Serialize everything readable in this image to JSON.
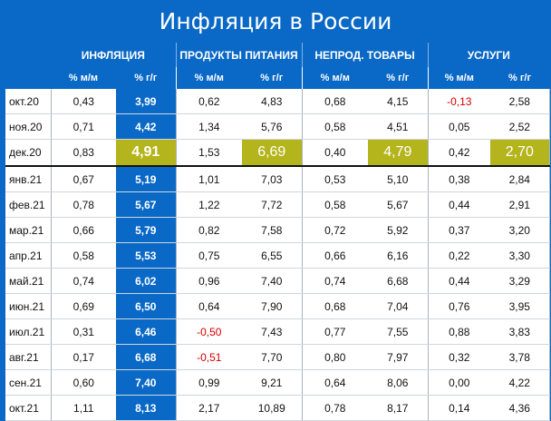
{
  "title": "Инфляция в России",
  "groups": [
    {
      "label": "ИНФЛЯЦИЯ"
    },
    {
      "label": "ПРОДУКТЫ ПИТАНИЯ"
    },
    {
      "label": "НЕПРОД. ТОВАРЫ"
    },
    {
      "label": "УСЛУГИ"
    }
  ],
  "subheaders": {
    "mm": "% м/м",
    "yy": "% г/г"
  },
  "highlight_colors": {
    "blue": "#0a69c6",
    "gold": "#b4b41c",
    "negative": "#d40000"
  },
  "rows": [
    {
      "month": "окт.20",
      "v": [
        "0,43",
        "3,99",
        "0,62",
        "4,83",
        "0,68",
        "4,15",
        "-0,13",
        "2,58"
      ]
    },
    {
      "month": "ноя.20",
      "v": [
        "0,71",
        "4,42",
        "1,34",
        "5,76",
        "0,58",
        "4,51",
        "0,05",
        "2,52"
      ]
    },
    {
      "month": "дек.20",
      "v": [
        "0,83",
        "4,91",
        "1,53",
        "6,69",
        "0,40",
        "4,79",
        "0,42",
        "2,70"
      ]
    },
    {
      "month": "янв.21",
      "v": [
        "0,67",
        "5,19",
        "1,01",
        "7,03",
        "0,53",
        "5,10",
        "0,38",
        "2,84"
      ]
    },
    {
      "month": "фев.21",
      "v": [
        "0,78",
        "5,67",
        "1,22",
        "7,72",
        "0,58",
        "5,67",
        "0,44",
        "2,91"
      ]
    },
    {
      "month": "мар.21",
      "v": [
        "0,66",
        "5,79",
        "0,82",
        "7,58",
        "0,72",
        "5,92",
        "0,37",
        "3,20"
      ]
    },
    {
      "month": "апр.21",
      "v": [
        "0,58",
        "5,53",
        "0,75",
        "6,55",
        "0,66",
        "6,16",
        "0,22",
        "3,30"
      ]
    },
    {
      "month": "май.21",
      "v": [
        "0,74",
        "6,02",
        "0,96",
        "7,40",
        "0,74",
        "6,68",
        "0,44",
        "3,29"
      ]
    },
    {
      "month": "июн.21",
      "v": [
        "0,69",
        "6,50",
        "0,64",
        "7,90",
        "0,68",
        "7,04",
        "0,76",
        "3,95"
      ]
    },
    {
      "month": "июл.21",
      "v": [
        "0,31",
        "6,46",
        "-0,50",
        "7,43",
        "0,77",
        "7,55",
        "0,88",
        "3,83"
      ]
    },
    {
      "month": "авг.21",
      "v": [
        "0,17",
        "6,68",
        "-0,51",
        "7,70",
        "0,80",
        "7,97",
        "0,32",
        "3,78"
      ]
    },
    {
      "month": "сен.21",
      "v": [
        "0,60",
        "7,40",
        "0,99",
        "9,21",
        "0,64",
        "8,06",
        "0,00",
        "4,22"
      ]
    },
    {
      "month": "окт.21",
      "v": [
        "1,11",
        "8,13",
        "2,17",
        "10,89",
        "0,78",
        "8,17",
        "0,14",
        "4,36"
      ]
    }
  ]
}
